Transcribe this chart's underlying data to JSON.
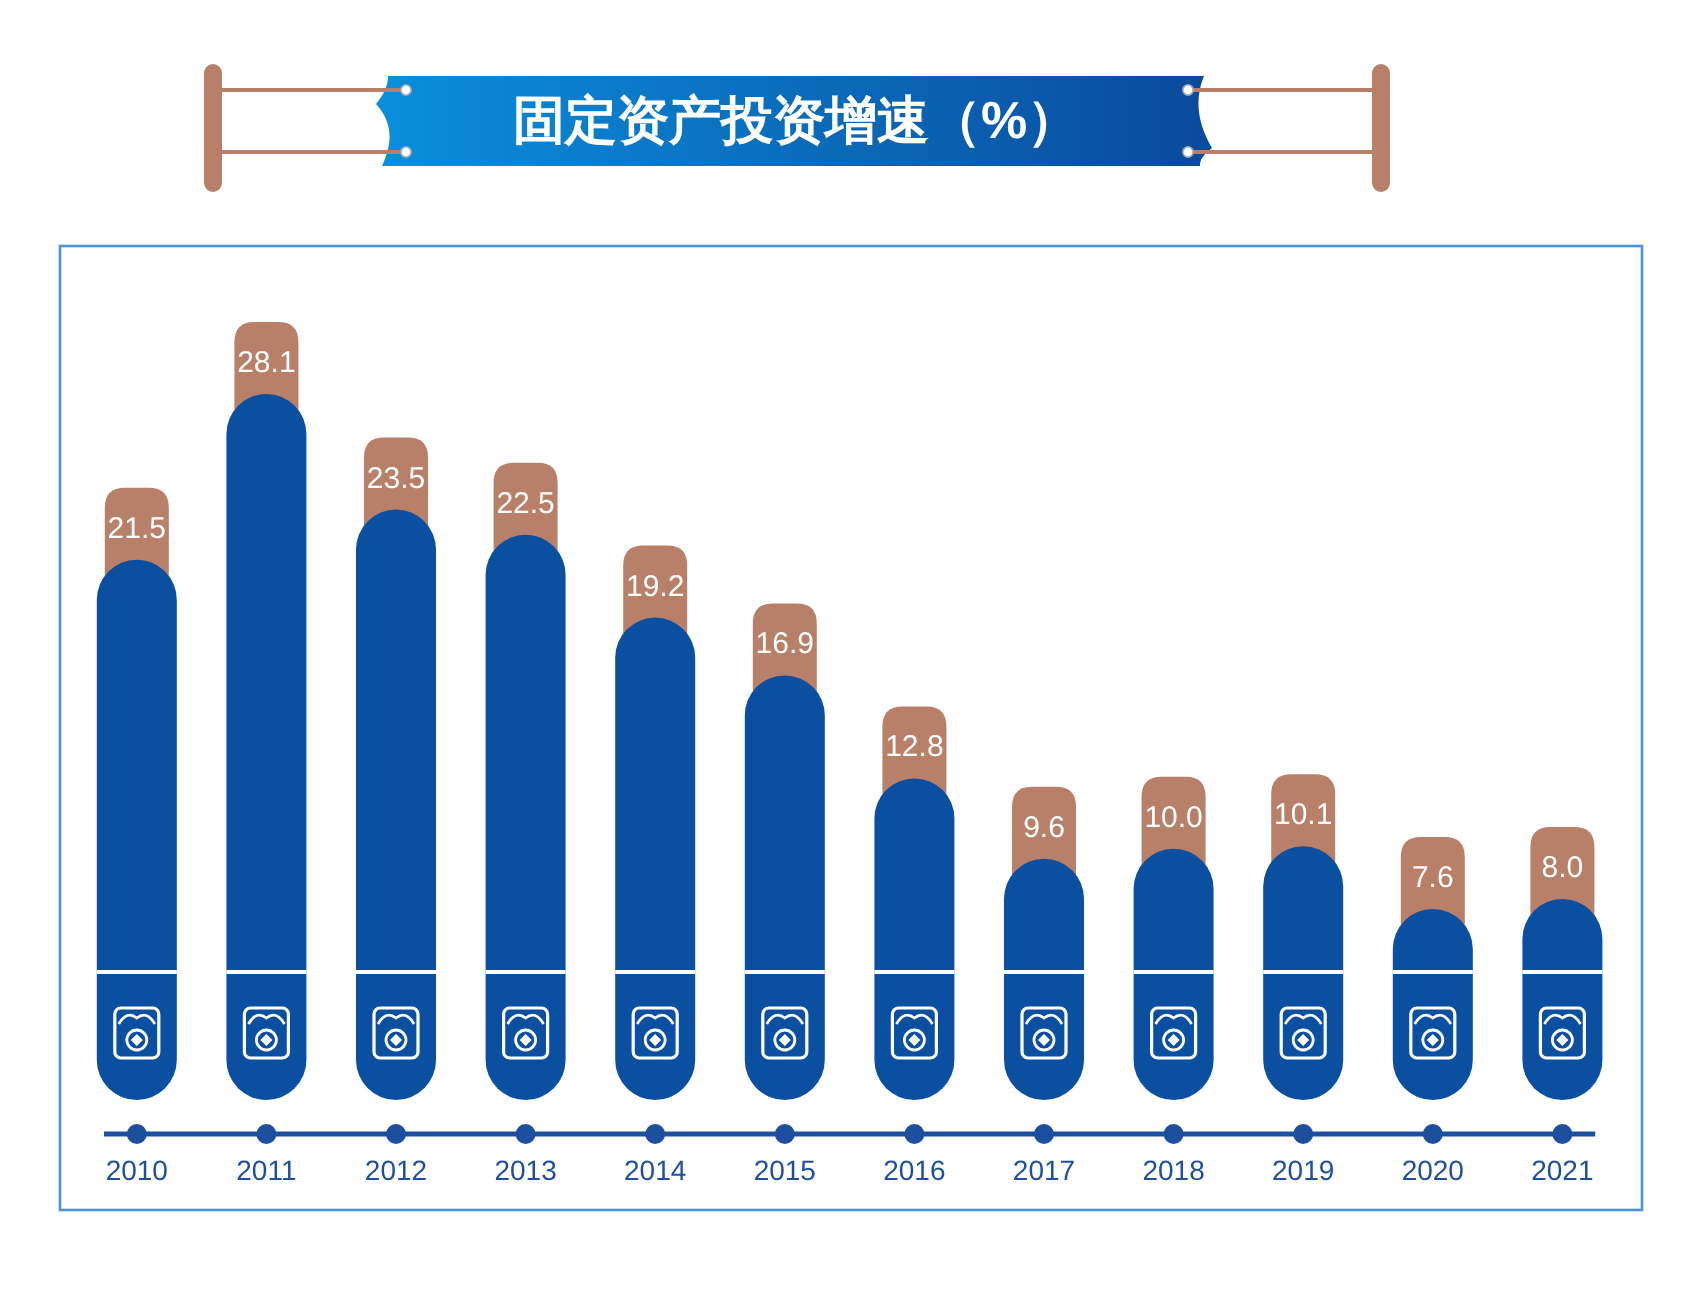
{
  "chart_data": {
    "type": "bar",
    "title": "固定资产投资增速（%）",
    "categories": [
      "2010",
      "2011",
      "2012",
      "2013",
      "2014",
      "2015",
      "2016",
      "2017",
      "2018",
      "2019",
      "2020",
      "2021"
    ],
    "values": [
      21.5,
      28.1,
      23.5,
      22.5,
      19.2,
      16.9,
      12.8,
      9.6,
      10.0,
      10.1,
      7.6,
      8.0
    ],
    "value_labels": [
      "21.5",
      "28.1",
      "23.5",
      "22.5",
      "19.2",
      "16.9",
      "12.8",
      "9.6",
      "10.0",
      "10.1",
      "7.6",
      "8.0"
    ],
    "color": "#0b4fa0"
  }
}
